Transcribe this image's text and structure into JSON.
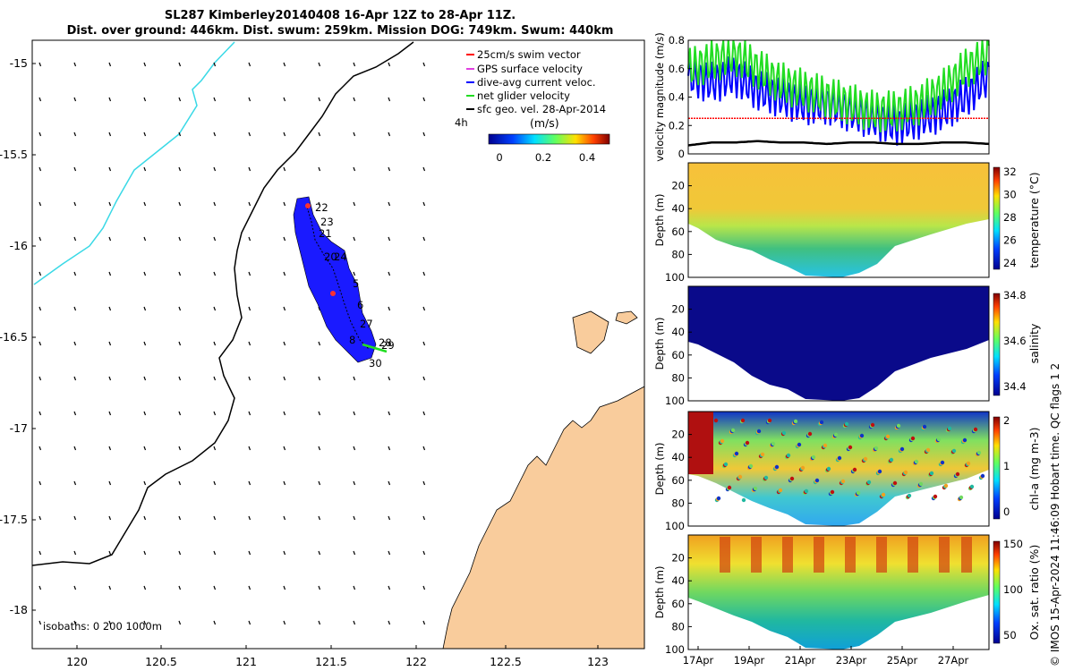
{
  "header": {
    "title_line1": "SL287 Kimberley20140408 16-Apr 12Z to 28-Apr 11Z.",
    "title_line2": "Dist. over ground: 446km. Dist. swum: 259km. Mission DOG: 749km. Swum: 440km"
  },
  "credit": "© IMOS 15-Apr-2024 11:46:09 Hobart time. QC flags 1  2",
  "colors": {
    "land": "#f9cc9c",
    "coastline": "#000000",
    "isobath_shallow": "#3ad9e6",
    "track_fill": "#1a1aff",
    "swim_vector": "#ff0000",
    "gps_velocity": "#e040e0",
    "dive_avg": "#0000ff",
    "net_velocity": "#22dd22",
    "sfc_geo": "#000000"
  },
  "map": {
    "lat_ticks": [
      "-15",
      "-15.5",
      "-16",
      "-16.5",
      "-17",
      "-17.5",
      "-18"
    ],
    "lon_ticks": [
      "120",
      "120.5",
      "121",
      "121.5",
      "122",
      "122.5",
      "123"
    ],
    "isobaths_label": "isobaths: 0   200  1000m",
    "day_labels": [
      "22",
      "23",
      "21",
      "20",
      "24",
      "5",
      "6",
      "27",
      "8",
      "28",
      "29",
      "30"
    ],
    "duration_label": "4h",
    "colorbar": {
      "title": "(m/s)",
      "ticks": [
        "0",
        "0.2",
        "0.4"
      ]
    },
    "legend": [
      {
        "label": "25cm/s swim vector",
        "color": "#ff0000"
      },
      {
        "label": "GPS surface velocity",
        "color": "#e040e0"
      },
      {
        "label": "dive-avg current veloc.",
        "color": "#0000ff"
      },
      {
        "label": "net glider velocity",
        "color": "#22dd22"
      },
      {
        "label": "sfc geo. vel. 28-Apr-2014",
        "color": "#000000"
      }
    ]
  },
  "panels": [
    {
      "id": "velocity",
      "ylabel": "velocity magnitude (m/s)",
      "yticks": [
        "0",
        "0.2",
        "0.4",
        "0.6",
        "0.8"
      ]
    },
    {
      "id": "temperature",
      "ylabel": "Depth (m)",
      "cbar_label": "temperature (°C)",
      "yticks": [
        "20",
        "40",
        "60",
        "80",
        "100"
      ],
      "cticks": [
        "32",
        "30",
        "28",
        "26",
        "24"
      ]
    },
    {
      "id": "salinity",
      "ylabel": "Depth (m)",
      "cbar_label": "salinity",
      "yticks": [
        "20",
        "40",
        "60",
        "80",
        "100"
      ],
      "cticks": [
        "34.8",
        "34.6",
        "34.4"
      ]
    },
    {
      "id": "chla",
      "ylabel": "Depth (m)",
      "cbar_label": "chl-a (mg m-3)",
      "yticks": [
        "20",
        "40",
        "60",
        "80",
        "100"
      ],
      "cticks": [
        "2",
        "1",
        "0"
      ]
    },
    {
      "id": "oxygen",
      "ylabel": "Depth (m)",
      "cbar_label": "Ox. sat. ratio (%)",
      "yticks": [
        "20",
        "40",
        "60",
        "80",
        "100"
      ],
      "cticks": [
        "150",
        "100",
        "50"
      ]
    }
  ],
  "time_ticks": [
    "17Apr",
    "19Apr",
    "21Apr",
    "23Apr",
    "25Apr",
    "27Apr"
  ],
  "chart_data": {
    "type": "line",
    "title": "SL287 Kimberley20140408 16-Apr 12Z to 28-Apr 11Z.",
    "x_range": [
      "16-Apr-2014",
      "28-Apr-2014"
    ],
    "ylim": [
      0,
      0.8
    ],
    "series": [
      {
        "name": "dive-avg current veloc.",
        "color": "#0000ff",
        "values": [
          0.55,
          0.5,
          0.55,
          0.45,
          0.4,
          0.35,
          0.35,
          0.3,
          0.25,
          0.2,
          0.25,
          0.3,
          0.4,
          0.55
        ]
      },
      {
        "name": "net glider velocity",
        "color": "#22dd22",
        "values": [
          0.6,
          0.65,
          0.7,
          0.6,
          0.5,
          0.45,
          0.4,
          0.35,
          0.3,
          0.3,
          0.35,
          0.45,
          0.6,
          0.7
        ]
      },
      {
        "name": "25cm/s swim vector",
        "color": "#ff0000",
        "values": [
          0.25,
          0.25,
          0.25,
          0.25,
          0.25,
          0.25,
          0.25,
          0.25,
          0.25,
          0.25,
          0.25,
          0.25,
          0.25,
          0.25
        ]
      },
      {
        "name": "sfc geo. vel. 28-Apr-2014",
        "color": "#000000",
        "values": [
          0.06,
          0.08,
          0.08,
          0.09,
          0.08,
          0.08,
          0.07,
          0.08,
          0.08,
          0.07,
          0.07,
          0.08,
          0.08,
          0.07
        ]
      }
    ]
  }
}
